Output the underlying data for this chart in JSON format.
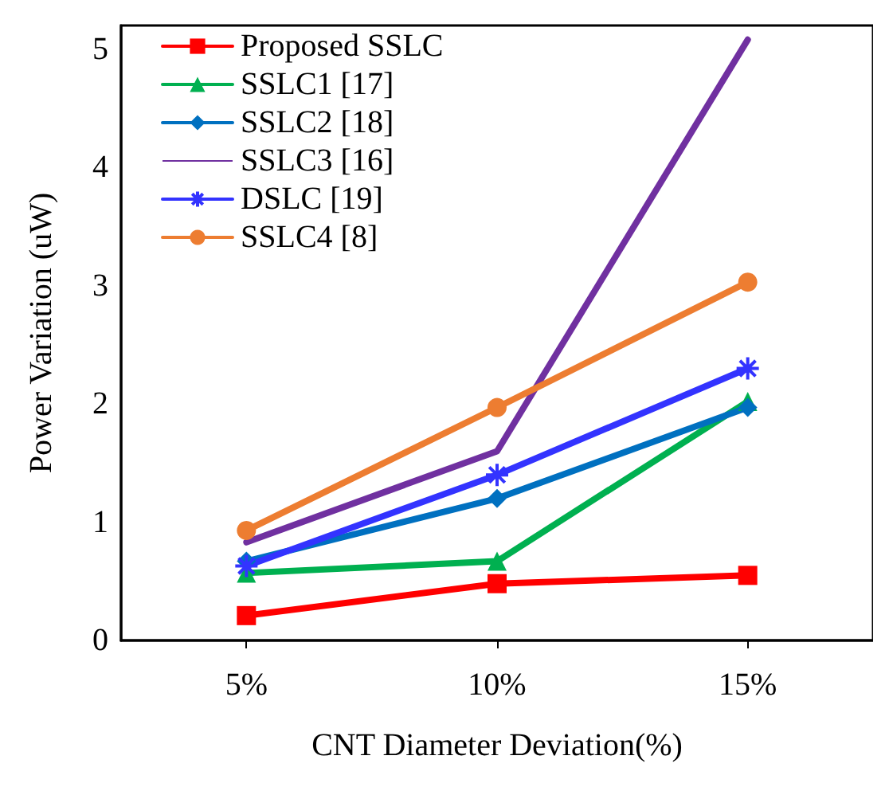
{
  "chart_data": {
    "type": "line",
    "xlabel": "CNT Diameter Deviation(%)",
    "ylabel": "Power Variation (uW)",
    "categories": [
      "5%",
      "10%",
      "15%"
    ],
    "ylim": [
      0,
      5.2
    ],
    "yticks": [
      0,
      1,
      2,
      3,
      4,
      5
    ],
    "grid": false,
    "legend": "top left",
    "series": [
      {
        "name": "Proposed SSLC",
        "color": "#ff0000",
        "marker": "square",
        "values": [
          0.21,
          0.48,
          0.55
        ]
      },
      {
        "name": "SSLC1 [17]",
        "color": "#00b050",
        "marker": "triangle",
        "values": [
          0.57,
          0.67,
          2.02
        ]
      },
      {
        "name": "SSLC2 [18]",
        "color": "#0070c0",
        "marker": "diamond",
        "values": [
          0.67,
          1.2,
          1.97
        ]
      },
      {
        "name": "SSLC3 [16]",
        "color": "#7030a0",
        "marker": "none",
        "values": [
          0.83,
          1.6,
          5.08
        ]
      },
      {
        "name": "DSLC [19]",
        "color": "#3333ff",
        "marker": "cross",
        "values": [
          0.63,
          1.4,
          2.3
        ]
      },
      {
        "name": "SSLC4 [8]",
        "color": "#ed7d31",
        "marker": "circle",
        "values": [
          0.93,
          1.97,
          3.03
        ]
      }
    ]
  }
}
